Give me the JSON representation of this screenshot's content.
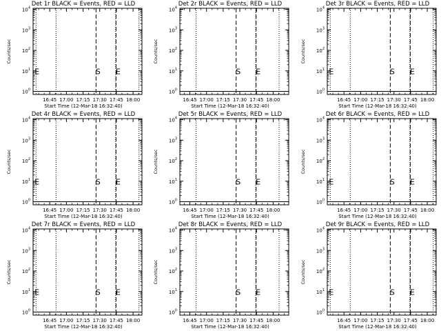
{
  "chart_data": {
    "type": "line",
    "layout": "3x3 grid",
    "panels": [
      {
        "title": "Det 1r BLACK = Events, RED = LLD"
      },
      {
        "title": "Det 2r BLACK = Events, RED = LLD"
      },
      {
        "title": "Det 3r BLACK = Events, RED = LLD"
      },
      {
        "title": "Det 4r BLACK = Events, RED = LLD"
      },
      {
        "title": "Det 5r BLACK = Events, RED = LLD"
      },
      {
        "title": "Det 6r BLACK = Events, RED = LLD"
      },
      {
        "title": "Det 7r BLACK = Events, RED = LLD"
      },
      {
        "title": "Det 8r BLACK = Events, RED = LLD"
      },
      {
        "title": "Det 9r BLACK = Events, RED = LLD"
      }
    ],
    "xlabel": "Start Time (12-Mar-18 16:32:40)",
    "ylabel": "Counts/sec",
    "x_ticks": [
      "16:45",
      "17:00",
      "17:15",
      "17:30",
      "17:45",
      "18:00"
    ],
    "x_tick_minutes": [
      45,
      60,
      75,
      90,
      105,
      120
    ],
    "y_scale": "log",
    "y_ticks": [
      {
        "base": "10",
        "exp": "0"
      },
      {
        "base": "10",
        "exp": "1"
      },
      {
        "base": "10",
        "exp": "2"
      },
      {
        "base": "10",
        "exp": "3"
      },
      {
        "base": "10",
        "exp": "4"
      }
    ],
    "y_exponents": [
      0,
      1,
      2,
      3,
      4
    ],
    "xlim_minutes_columns": [
      [
        30,
        128
      ],
      [
        36,
        134
      ],
      [
        30,
        128
      ]
    ],
    "dotted_lines_minutes": [
      32.67,
      50.67,
      104.33,
      125.33
    ],
    "dashed_lines_minutes": [
      86.67,
      104.67
    ],
    "markers": [
      {
        "label": "S",
        "minute": 86.67
      },
      {
        "label": "E",
        "minute": 104.67
      },
      {
        "label": "E",
        "minute": 31.67
      }
    ],
    "series_values_cps": 1
  }
}
